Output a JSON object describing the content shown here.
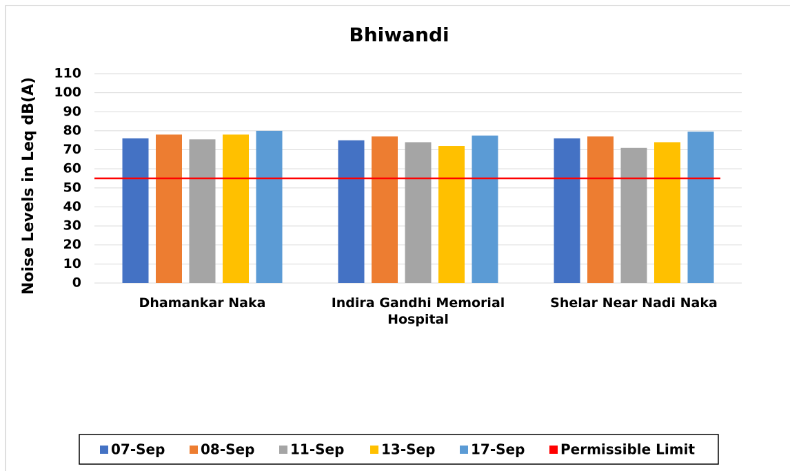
{
  "chart_data": {
    "type": "bar",
    "title": "Bhiwandi",
    "y_label": "Noise Levels in Leq dB(A)",
    "categories": [
      "Dhamankar Naka",
      "Indira Gandhi Memorial Hospital",
      "Shelar Near Nadi Naka"
    ],
    "series": [
      {
        "name": "07-Sep",
        "color": "#4472c4",
        "values": [
          76,
          75,
          76
        ]
      },
      {
        "name": "08-Sep",
        "color": "#ed7d31",
        "values": [
          78,
          77,
          77
        ]
      },
      {
        "name": "11-Sep",
        "color": "#a5a5a5",
        "values": [
          75.5,
          74,
          71
        ]
      },
      {
        "name": "13-Sep",
        "color": "#ffc000",
        "values": [
          78,
          72,
          74
        ]
      },
      {
        "name": "17-Sep",
        "color": "#5b9bd5",
        "values": [
          80,
          77.5,
          79.5
        ]
      }
    ],
    "reference_line": {
      "name": "Permissible Limit",
      "value": 55,
      "color": "#ff0000"
    },
    "ylim": [
      0,
      110
    ],
    "yticks": [
      0,
      10,
      20,
      30,
      40,
      50,
      60,
      70,
      80,
      90,
      100,
      110
    ],
    "grid": true,
    "legend": "bottom"
  }
}
